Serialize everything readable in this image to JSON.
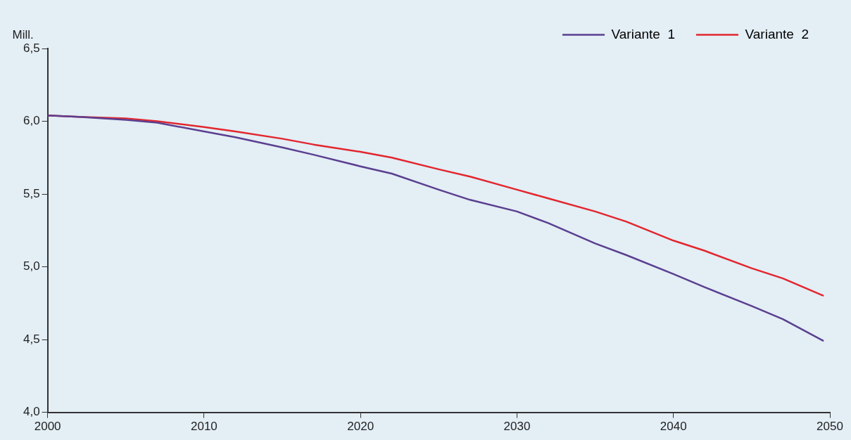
{
  "chart_data": {
    "type": "line",
    "ylabel": "Mill.",
    "x": [
      2000,
      2002,
      2005,
      2007,
      2010,
      2012,
      2015,
      2017,
      2020,
      2022,
      2025,
      2027,
      2030,
      2032,
      2035,
      2037,
      2040,
      2042,
      2045,
      2047,
      2049.6
    ],
    "series": [
      {
        "name": "Variante  1",
        "color": "#5a3f8f",
        "values": [
          6.04,
          6.03,
          6.01,
          5.99,
          5.93,
          5.89,
          5.82,
          5.77,
          5.69,
          5.64,
          5.53,
          5.46,
          5.38,
          5.3,
          5.16,
          5.08,
          4.95,
          4.86,
          4.73,
          4.64,
          4.49
        ]
      },
      {
        "name": "Variante  2",
        "color": "#e3262e",
        "values": [
          6.04,
          6.03,
          6.02,
          6.0,
          5.96,
          5.93,
          5.88,
          5.84,
          5.79,
          5.75,
          5.67,
          5.62,
          5.53,
          5.47,
          5.38,
          5.31,
          5.18,
          5.11,
          4.99,
          4.92,
          4.8
        ]
      }
    ],
    "xlim": [
      2000,
      2050
    ],
    "xticks": [
      2000,
      2010,
      2020,
      2030,
      2040,
      2050
    ],
    "ylim": [
      4.0,
      6.5
    ],
    "yticks": [
      {
        "value": 4.0,
        "label": "4,0"
      },
      {
        "value": 4.5,
        "label": "4,5"
      },
      {
        "value": 5.0,
        "label": "5,0"
      },
      {
        "value": 5.5,
        "label": "5,5"
      },
      {
        "value": 6.0,
        "label": "6,0"
      },
      {
        "value": 6.5,
        "label": "6,5"
      }
    ],
    "grid": false,
    "legend": "top right",
    "marker": "none",
    "line_style": "solid"
  }
}
